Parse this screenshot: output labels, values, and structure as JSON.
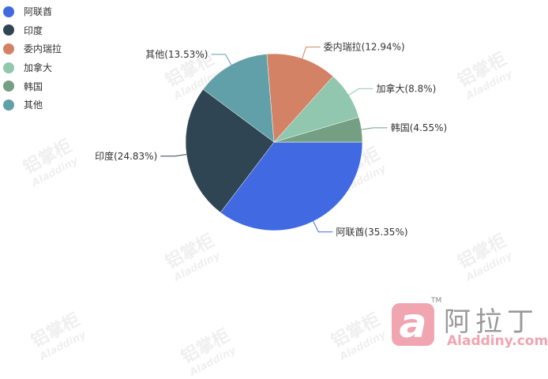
{
  "chart_data": {
    "type": "pie",
    "title": "",
    "categories": [
      "阿联酋",
      "印度",
      "其他",
      "委内瑞拉",
      "加拿大",
      "韩国"
    ],
    "values": [
      35.35,
      24.83,
      13.53,
      12.94,
      8.8,
      4.55
    ],
    "labels": [
      "阿联酋(35.35%)",
      "印度(24.83%)",
      "其他(13.53%)",
      "委内瑞拉(12.94%)",
      "加拿大(8.8%)",
      "韩国(4.55%)"
    ],
    "colors": [
      "#4169e1",
      "#2f4554",
      "#61a0a8",
      "#d48265",
      "#91c7ae",
      "#749f83"
    ],
    "start_angle": "3 o'clock, clockwise",
    "legend": {
      "placement": "top-left",
      "items": [
        {
          "label": "阿联酋",
          "color": "#4169e1"
        },
        {
          "label": "印度",
          "color": "#2f4554"
        },
        {
          "label": "委内瑞拉",
          "color": "#d48265"
        },
        {
          "label": "加拿大",
          "color": "#91c7ae"
        },
        {
          "label": "韩国",
          "color": "#749f83"
        },
        {
          "label": "其他",
          "color": "#61a0a8"
        }
      ]
    }
  },
  "watermark": {
    "cn": "铝掌柜",
    "en": "Aladdiny"
  },
  "logo": {
    "symbol": "a",
    "tm": "TM",
    "cn": "阿拉丁",
    "en": "Aladdiny.com"
  }
}
